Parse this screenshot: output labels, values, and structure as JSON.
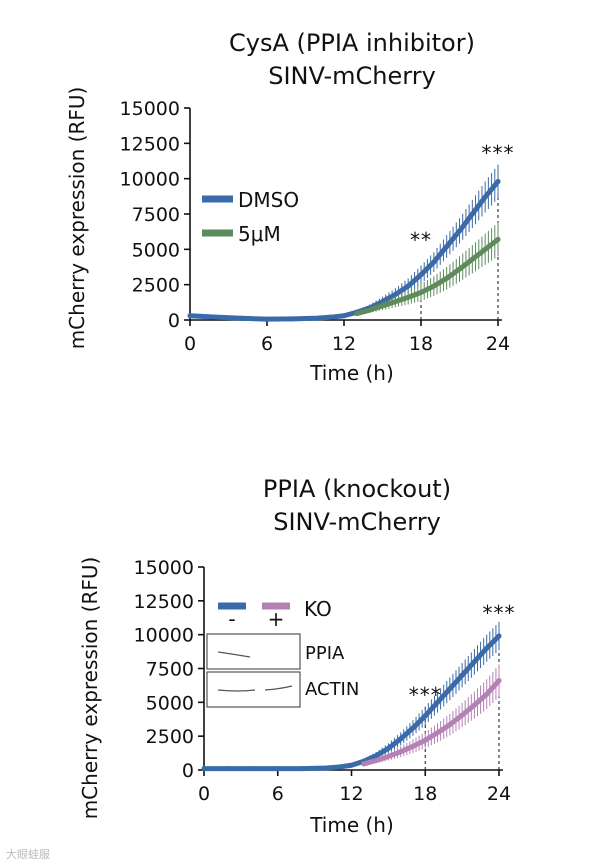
{
  "chart_data": [
    {
      "type": "line",
      "title": [
        "CysA (PPIA inhibitor)",
        "SINV-mCherry"
      ],
      "xlabel": "Time (h)",
      "ylabel": "mCherry expression (RFU)",
      "xticks": [
        "0",
        "6",
        "12",
        "18",
        "24"
      ],
      "yticks": [
        "0",
        "2500",
        "5000",
        "7500",
        "10000",
        "12500",
        "15000"
      ],
      "xlim": [
        0,
        24
      ],
      "ylim": [
        0,
        15000
      ],
      "legend": [
        "DMSO",
        "5μM"
      ],
      "series": [
        {
          "name": "DMSO",
          "color": "#3a6aa8",
          "x": [
            0,
            2,
            4,
            6,
            8,
            10,
            11,
            12,
            13,
            14,
            15,
            16,
            17,
            18,
            19,
            20,
            21,
            22,
            23,
            24
          ],
          "values": [
            300,
            200,
            120,
            60,
            80,
            130,
            200,
            300,
            550,
            850,
            1300,
            1800,
            2400,
            3200,
            4100,
            5200,
            6300,
            7500,
            8700,
            9800
          ],
          "error": [
            80,
            60,
            50,
            40,
            40,
            50,
            60,
            90,
            150,
            250,
            350,
            450,
            550,
            650,
            700,
            800,
            900,
            1000,
            1100,
            1200
          ]
        },
        {
          "name": "5μM",
          "color": "#5e8a5c",
          "x": [
            13,
            14,
            15,
            16,
            17,
            18,
            19,
            20,
            21,
            22,
            23,
            24
          ],
          "values": [
            450,
            700,
            1000,
            1300,
            1600,
            1950,
            2400,
            2950,
            3600,
            4300,
            5000,
            5700
          ],
          "error": [
            150,
            200,
            300,
            400,
            500,
            600,
            700,
            800,
            900,
            1000,
            1100,
            1200
          ]
        }
      ],
      "significance": [
        {
          "x": 18,
          "label": "**"
        },
        {
          "x": 24,
          "label": "***"
        }
      ]
    },
    {
      "type": "line",
      "title": [
        "PPIA (knockout)",
        "SINV-mCherry"
      ],
      "xlabel": "Time (h)",
      "ylabel": "mCherry expression (RFU)",
      "xticks": [
        "0",
        "6",
        "12",
        "18",
        "24"
      ],
      "yticks": [
        "0",
        "2500",
        "5000",
        "7500",
        "10000",
        "12500",
        "15000"
      ],
      "xlim": [
        0,
        24
      ],
      "ylim": [
        0,
        15000
      ],
      "legend": {
        "labels": [
          "-",
          "+"
        ],
        "title": "KO"
      },
      "inset_blot": [
        "PPIA",
        "ACTIN"
      ],
      "series": [
        {
          "name": "-",
          "color": "#3a6aa8",
          "x": [
            0,
            2,
            4,
            6,
            8,
            10,
            11,
            12,
            13,
            14,
            15,
            16,
            17,
            18,
            19,
            20,
            21,
            22,
            23,
            24
          ],
          "values": [
            100,
            100,
            100,
            100,
            100,
            150,
            220,
            350,
            650,
            1050,
            1600,
            2300,
            3100,
            4000,
            5000,
            6000,
            7000,
            8000,
            9000,
            9900
          ],
          "error": [
            60,
            50,
            40,
            40,
            40,
            50,
            60,
            100,
            180,
            280,
            380,
            480,
            580,
            680,
            760,
            840,
            900,
            950,
            1000,
            1050
          ]
        },
        {
          "name": "+",
          "color": "#b481b5",
          "x": [
            13,
            14,
            15,
            16,
            17,
            18,
            19,
            20,
            21,
            22,
            23,
            24
          ],
          "values": [
            450,
            700,
            1000,
            1350,
            1750,
            2200,
            2750,
            3350,
            4050,
            4800,
            5600,
            6600
          ],
          "error": [
            150,
            200,
            300,
            400,
            500,
            600,
            700,
            800,
            900,
            1000,
            1100,
            1200
          ]
        }
      ],
      "significance": [
        {
          "x": 18,
          "label": "***"
        },
        {
          "x": 24,
          "label": "***"
        }
      ]
    }
  ],
  "watermark": "大眼蛙服"
}
